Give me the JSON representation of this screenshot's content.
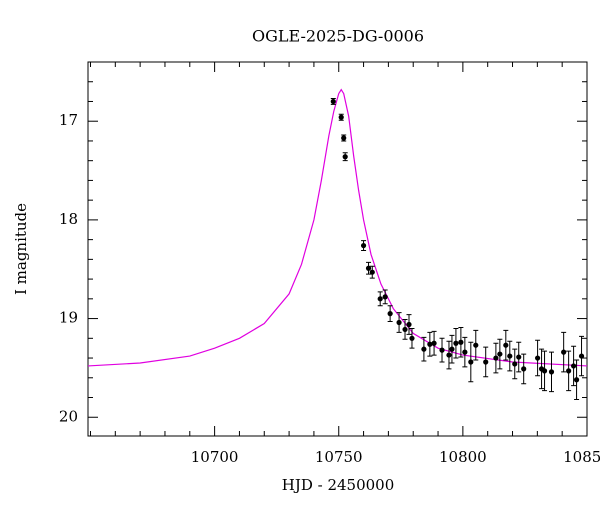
{
  "chart_data": {
    "type": "scatter",
    "title": "OGLE-2025-DG-0006",
    "xlabel": "HJD - 2450000",
    "ylabel": "I magnitude",
    "xlim": [
      10649,
      10850
    ],
    "ylim": [
      20.19,
      16.4
    ],
    "xticks": [
      10700,
      10750,
      10800,
      10850
    ],
    "yticks": [
      17,
      18,
      19,
      20
    ],
    "xminorticks": [
      10650,
      10660,
      10670,
      10680,
      10690,
      10710,
      10720,
      10730,
      10740,
      10760,
      10770,
      10780,
      10790,
      10810,
      10820,
      10830,
      10840
    ],
    "yminorticks": [
      16.6,
      16.8,
      17.2,
      17.4,
      17.6,
      17.8,
      18.2,
      18.4,
      18.6,
      18.8,
      19.2,
      19.4,
      19.6,
      19.8,
      20.2
    ],
    "series": [
      {
        "type": "line",
        "color": "#e000e0",
        "x": [
          10649,
          10670,
          10690,
          10700,
          10710,
          10720,
          10730,
          10735,
          10740,
          10743,
          10746,
          10748,
          10750,
          10751,
          10752,
          10754,
          10756,
          10758,
          10760,
          10763,
          10767,
          10772,
          10780,
          10790,
          10800,
          10820,
          10850
        ],
        "values": [
          19.48,
          19.45,
          19.38,
          19.3,
          19.2,
          19.05,
          18.75,
          18.45,
          18.0,
          17.6,
          17.15,
          16.9,
          16.72,
          16.68,
          16.72,
          16.95,
          17.35,
          17.7,
          18.0,
          18.35,
          18.65,
          18.9,
          19.15,
          19.3,
          19.37,
          19.44,
          19.48
        ]
      },
      {
        "type": "errorbar",
        "color": "#000000",
        "x": [
          10747.8,
          10751,
          10752,
          10752.6,
          10760,
          10762,
          10763.5,
          10766.7,
          10768.7,
          10770.7,
          10774.3,
          10776.7,
          10778.3,
          10779.5,
          10784.3,
          10786.7,
          10788.4,
          10791.6,
          10794.4,
          10795.6,
          10797.2,
          10799.2,
          10800.8,
          10803.2,
          10805.2,
          10809.2,
          10813.3,
          10814.9,
          10817.3,
          10818.9,
          10820.9,
          10822.5,
          10824.5,
          10830.1,
          10831.7,
          10832.9,
          10835.7,
          10840.6,
          10842.6,
          10844.6,
          10845.8,
          10847.8
        ],
        "values": [
          16.8,
          16.96,
          17.17,
          17.36,
          18.26,
          18.49,
          18.53,
          18.8,
          18.78,
          18.95,
          19.04,
          19.11,
          19.06,
          19.2,
          19.31,
          19.26,
          19.25,
          19.32,
          19.37,
          19.31,
          19.25,
          19.24,
          19.34,
          19.44,
          19.27,
          19.44,
          19.4,
          19.36,
          19.27,
          19.38,
          19.46,
          19.39,
          19.51,
          19.4,
          19.51,
          19.53,
          19.54,
          19.34,
          19.53,
          19.48,
          19.62,
          19.38
        ],
        "errors": [
          0.03,
          0.03,
          0.03,
          0.04,
          0.05,
          0.06,
          0.06,
          0.07,
          0.07,
          0.08,
          0.1,
          0.1,
          0.1,
          0.1,
          0.12,
          0.12,
          0.12,
          0.12,
          0.14,
          0.14,
          0.15,
          0.15,
          0.15,
          0.2,
          0.15,
          0.15,
          0.15,
          0.15,
          0.15,
          0.15,
          0.15,
          0.15,
          0.15,
          0.18,
          0.2,
          0.2,
          0.2,
          0.2,
          0.2,
          0.2,
          0.2,
          0.2
        ]
      }
    ]
  }
}
